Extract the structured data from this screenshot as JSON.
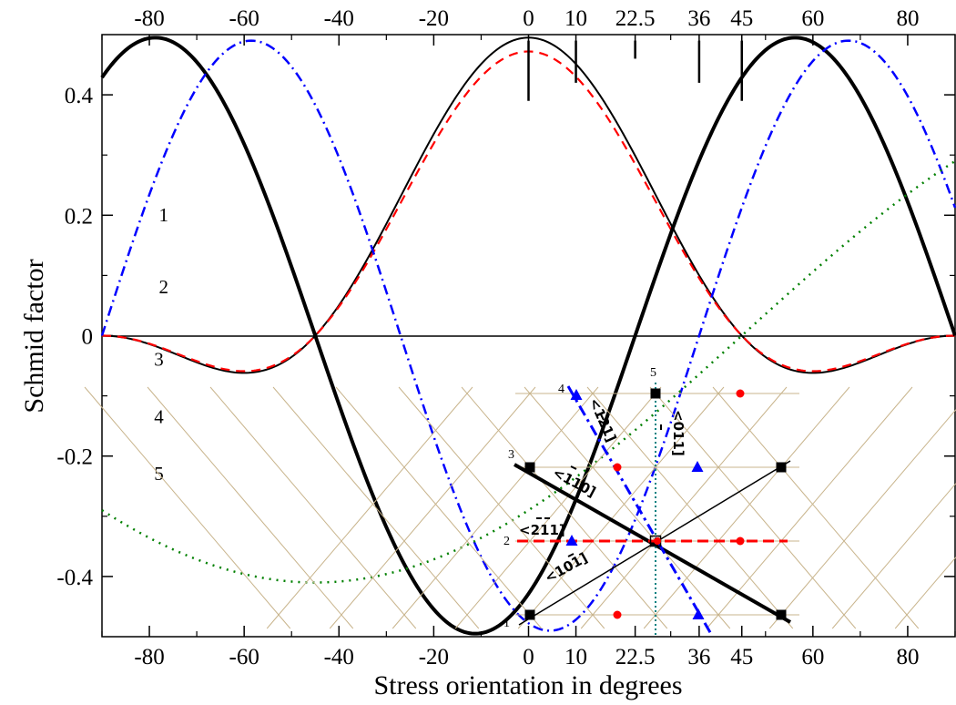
{
  "chart_data": {
    "type": "line",
    "xlabel": "Stress orientation in degrees",
    "ylabel": "Schmid factor",
    "xlim": [
      -90,
      90
    ],
    "ylim": [
      -0.5,
      0.5
    ],
    "x_ticks": [
      -80,
      -60,
      -40,
      -20,
      0,
      10,
      22.5,
      36,
      45,
      60,
      80
    ],
    "y_ticks": [
      -0.4,
      -0.2,
      0,
      0.2,
      0.4
    ],
    "y_tick_labels": [
      "-0.4",
      "-0.2",
      "0",
      "0.2",
      "0.4"
    ],
    "x_minor_ticks": [
      -90,
      -70,
      -50,
      -30,
      -10,
      30,
      50,
      70,
      90
    ],
    "y_minor_ticks": [
      -0.3,
      -0.1,
      0.1,
      0.3
    ],
    "marker_lines": [
      {
        "x": 0,
        "y_from": 0.39,
        "y_to": 0.49
      },
      {
        "x": 10,
        "y_from": 0.42,
        "y_to": 0.49
      },
      {
        "x": 22.5,
        "y_from": 0.46,
        "y_to": 0.49
      },
      {
        "x": 36,
        "y_from": 0.42,
        "y_to": 0.49
      },
      {
        "x": 45,
        "y_from": 0.39,
        "y_to": 0.49
      }
    ],
    "series": [
      {
        "label": "1",
        "formula": "0.495*cos^2(x)*sin(2*(x+45))",
        "color": "#000000",
        "width": 2,
        "dash": "",
        "label_x": -78,
        "label_y": 0.19
      },
      {
        "label": "2",
        "formula": "0.472*cos^2(x)*sin(2*(x+45))",
        "color": "#ff0000",
        "width": 2.2,
        "dash": "10,7",
        "label_x": -78,
        "label_y": 0.07
      },
      {
        "label": "3",
        "formula": "0.495*sin(2*(x-22.5)*pi/135)",
        "color": "#000000",
        "width": 4,
        "dash": "",
        "label_x": -79,
        "label_y": -0.05
      },
      {
        "label": "4",
        "formula": "0.49*sin(2*(x-36)*pi/126)",
        "color": "#0000ff",
        "width": 2.5,
        "dash": "11,5,2,5",
        "label_x": -79,
        "label_y": -0.145
      },
      {
        "label": "5",
        "formula": "0.41*sin(x-45)",
        "color": "#008000",
        "width": 2.5,
        "dash": "2,6",
        "label_x": -79,
        "label_y": -0.24
      }
    ]
  },
  "inset": {
    "line_labels": [
      "1",
      "2",
      "3",
      "4",
      "5"
    ],
    "direction_labels": [
      "<121]",
      "<011]",
      "<110]",
      "<211]",
      "<101]"
    ],
    "colors": {
      "grid": "#c8b48c",
      "slip1": "#000000",
      "slip2": "#ff0000",
      "slip3": "#000000",
      "slip4": "#0000ff",
      "slip5": "#008080",
      "square": "#000000",
      "triangle": "#0000ff",
      "circle": "#ff0000"
    }
  }
}
